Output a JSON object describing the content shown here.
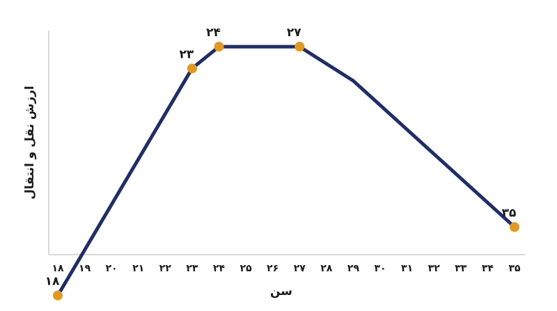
{
  "chart_data": {
    "type": "line",
    "xlabel": "سن",
    "ylabel": "ارزش نقل و انتقال",
    "x_tick_labels": [
      "۱۸",
      "۱۹",
      "۲۰",
      "۲۱",
      "۲۲",
      "۲۳",
      "۲۴",
      "۲۵",
      "۲۶",
      "۲۷",
      "۲۸",
      "۲۹",
      "۳۰",
      "۳۱",
      "۳۲",
      "۳۳",
      "۳۴",
      "۳۵"
    ],
    "xlim": [
      18,
      35
    ],
    "ylim": [
      0,
      100
    ],
    "y_ticks_shown": false,
    "grid": false,
    "series": [
      {
        "x": [
          18,
          23,
          24,
          27,
          29,
          35
        ],
        "values": [
          5,
          78,
          85,
          85,
          74,
          27
        ]
      }
    ],
    "markers": [
      {
        "x": 18,
        "y": 5,
        "label": "۱۸"
      },
      {
        "x": 23,
        "y": 78,
        "label": "۲۳"
      },
      {
        "x": 24,
        "y": 85,
        "label": "۲۴"
      },
      {
        "x": 27,
        "y": 85,
        "label": "۲۷"
      },
      {
        "x": 35,
        "y": 27,
        "label": "۳۵"
      }
    ],
    "colors": {
      "line": "#1f2d6b",
      "marker": "#e19a1f",
      "axis": "#b0b0b0"
    }
  }
}
